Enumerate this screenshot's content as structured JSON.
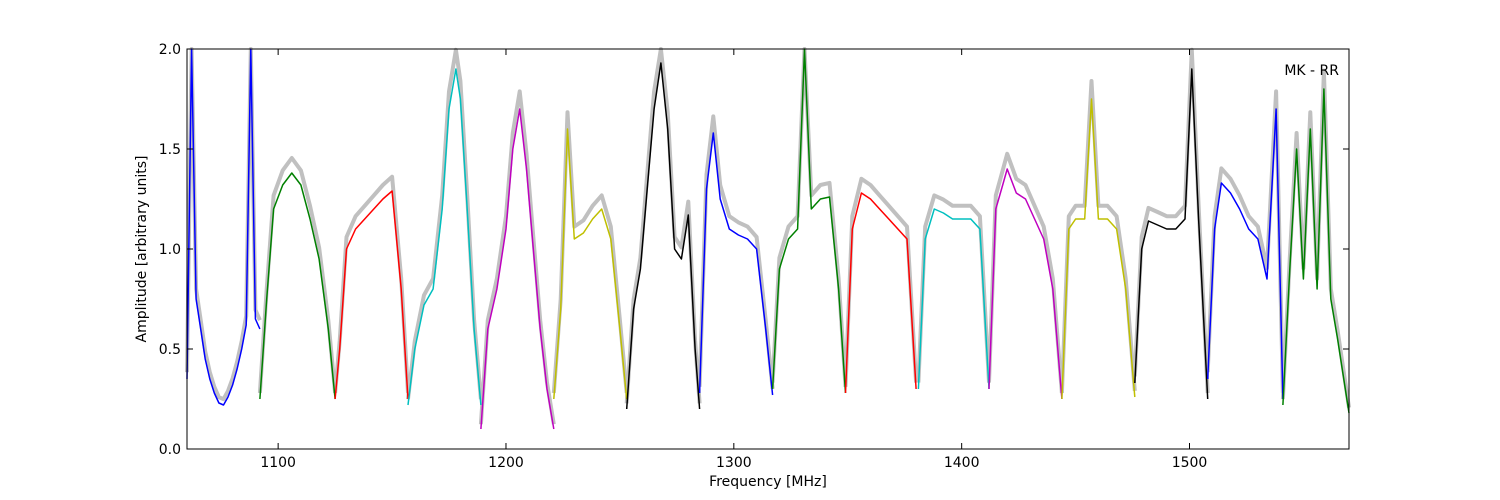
{
  "chart_data": {
    "type": "line",
    "title": "",
    "xlabel": "Frequency [MHz]",
    "ylabel": "Amplitude [arbitrary units]",
    "annotation": "MK - RR",
    "xlim": [
      1060,
      1570
    ],
    "ylim": [
      0.0,
      2.0
    ],
    "xticks": [
      1100,
      1200,
      1300,
      1400,
      1500
    ],
    "yticks": [
      0.0,
      0.5,
      1.0,
      1.5,
      2.0
    ],
    "xtick_labels": [
      "1100",
      "1200",
      "1300",
      "1400",
      "1500"
    ],
    "ytick_labels": [
      "0.0",
      "0.5",
      "1.0",
      "1.5",
      "2.0"
    ],
    "grid": false,
    "background_color": "#c0c0c0",
    "subband_colors": [
      "#0000ff",
      "#008000",
      "#ff0000",
      "#00bfbf",
      "#bf00bf",
      "#bfbf00",
      "#000000"
    ],
    "subbands": [
      {
        "color": "#0000ff",
        "x": [
          1060,
          1062,
          1064,
          1066,
          1068,
          1070,
          1072,
          1074,
          1076,
          1078,
          1080,
          1082,
          1084,
          1086,
          1088,
          1090,
          1092
        ],
        "y": [
          0.35,
          2.0,
          0.75,
          0.6,
          0.45,
          0.35,
          0.28,
          0.23,
          0.22,
          0.26,
          0.32,
          0.4,
          0.5,
          0.62,
          2.0,
          0.65,
          0.6
        ]
      },
      {
        "color": "#008000",
        "x": [
          1092,
          1095,
          1098,
          1102,
          1106,
          1110,
          1114,
          1118,
          1122,
          1125
        ],
        "y": [
          0.25,
          0.75,
          1.2,
          1.32,
          1.38,
          1.32,
          1.15,
          0.95,
          0.6,
          0.25
        ]
      },
      {
        "color": "#ff0000",
        "x": [
          1125,
          1127,
          1130,
          1134,
          1138,
          1142,
          1146,
          1150,
          1154,
          1157
        ],
        "y": [
          0.25,
          0.5,
          1.0,
          1.1,
          1.15,
          1.2,
          1.25,
          1.29,
          0.8,
          0.25
        ]
      },
      {
        "color": "#00bfbf",
        "x": [
          1157,
          1160,
          1164,
          1168,
          1172,
          1175,
          1178,
          1180,
          1183,
          1186,
          1189
        ],
        "y": [
          0.22,
          0.5,
          0.72,
          0.8,
          1.2,
          1.7,
          1.9,
          1.75,
          1.2,
          0.6,
          0.22
        ]
      },
      {
        "color": "#bf00bf",
        "x": [
          1189,
          1192,
          1196,
          1200,
          1203,
          1206,
          1209,
          1212,
          1215,
          1218,
          1221
        ],
        "y": [
          0.1,
          0.6,
          0.8,
          1.1,
          1.5,
          1.7,
          1.4,
          1.0,
          0.6,
          0.3,
          0.1
        ]
      },
      {
        "color": "#bfbf00",
        "x": [
          1221,
          1224,
          1227,
          1230,
          1234,
          1238,
          1242,
          1246,
          1250,
          1253
        ],
        "y": [
          0.25,
          0.7,
          1.6,
          1.05,
          1.08,
          1.15,
          1.2,
          1.05,
          0.6,
          0.25
        ]
      },
      {
        "color": "#000000",
        "x": [
          1253,
          1256,
          1259,
          1262,
          1265,
          1268,
          1271,
          1274,
          1277,
          1280,
          1283,
          1285
        ],
        "y": [
          0.2,
          0.7,
          0.9,
          1.3,
          1.7,
          1.93,
          1.6,
          1.0,
          0.95,
          1.17,
          0.5,
          0.2
        ]
      },
      {
        "color": "#0000ff",
        "x": [
          1285,
          1288,
          1291,
          1294,
          1298,
          1302,
          1306,
          1310,
          1314,
          1317
        ],
        "y": [
          0.28,
          1.3,
          1.58,
          1.25,
          1.1,
          1.07,
          1.05,
          1.0,
          0.6,
          0.27
        ]
      },
      {
        "color": "#008000",
        "x": [
          1317,
          1320,
          1324,
          1328,
          1331,
          1334,
          1338,
          1342,
          1346,
          1349
        ],
        "y": [
          0.3,
          0.9,
          1.05,
          1.1,
          2.0,
          1.2,
          1.25,
          1.26,
          0.8,
          0.28
        ]
      },
      {
        "color": "#ff0000",
        "x": [
          1349,
          1352,
          1356,
          1360,
          1364,
          1368,
          1372,
          1376,
          1380
        ],
        "y": [
          0.28,
          1.1,
          1.28,
          1.25,
          1.2,
          1.15,
          1.1,
          1.05,
          0.3
        ]
      },
      {
        "color": "#00bfbf",
        "x": [
          1381,
          1384,
          1388,
          1392,
          1396,
          1400,
          1404,
          1408,
          1412
        ],
        "y": [
          0.3,
          1.05,
          1.2,
          1.18,
          1.15,
          1.15,
          1.15,
          1.1,
          0.3
        ]
      },
      {
        "color": "#bf00bf",
        "x": [
          1412,
          1415,
          1418,
          1420,
          1424,
          1428,
          1432,
          1436,
          1440,
          1444
        ],
        "y": [
          0.3,
          1.2,
          1.32,
          1.4,
          1.28,
          1.25,
          1.15,
          1.05,
          0.8,
          0.25
        ]
      },
      {
        "color": "#bfbf00",
        "x": [
          1444,
          1447,
          1450,
          1454,
          1457,
          1460,
          1464,
          1468,
          1472,
          1476
        ],
        "y": [
          0.25,
          1.1,
          1.15,
          1.15,
          1.75,
          1.15,
          1.15,
          1.1,
          0.8,
          0.26
        ]
      },
      {
        "color": "#000000",
        "x": [
          1476,
          1479,
          1482,
          1486,
          1490,
          1494,
          1498,
          1501,
          1504,
          1508
        ],
        "y": [
          0.33,
          1.0,
          1.14,
          1.12,
          1.1,
          1.1,
          1.15,
          1.9,
          1.15,
          0.25
        ]
      },
      {
        "color": "#0000ff",
        "x": [
          1508,
          1511,
          1514,
          1518,
          1522,
          1526,
          1530,
          1534,
          1538,
          1541
        ],
        "y": [
          0.35,
          1.1,
          1.33,
          1.28,
          1.2,
          1.1,
          1.05,
          0.85,
          1.7,
          0.25
        ]
      },
      {
        "color": "#008000",
        "x": [
          1541,
          1544,
          1547,
          1550,
          1553,
          1556,
          1559,
          1562,
          1565,
          1570
        ],
        "y": [
          0.22,
          0.9,
          1.5,
          0.85,
          1.6,
          0.8,
          1.8,
          0.75,
          0.55,
          0.18
        ]
      }
    ]
  }
}
